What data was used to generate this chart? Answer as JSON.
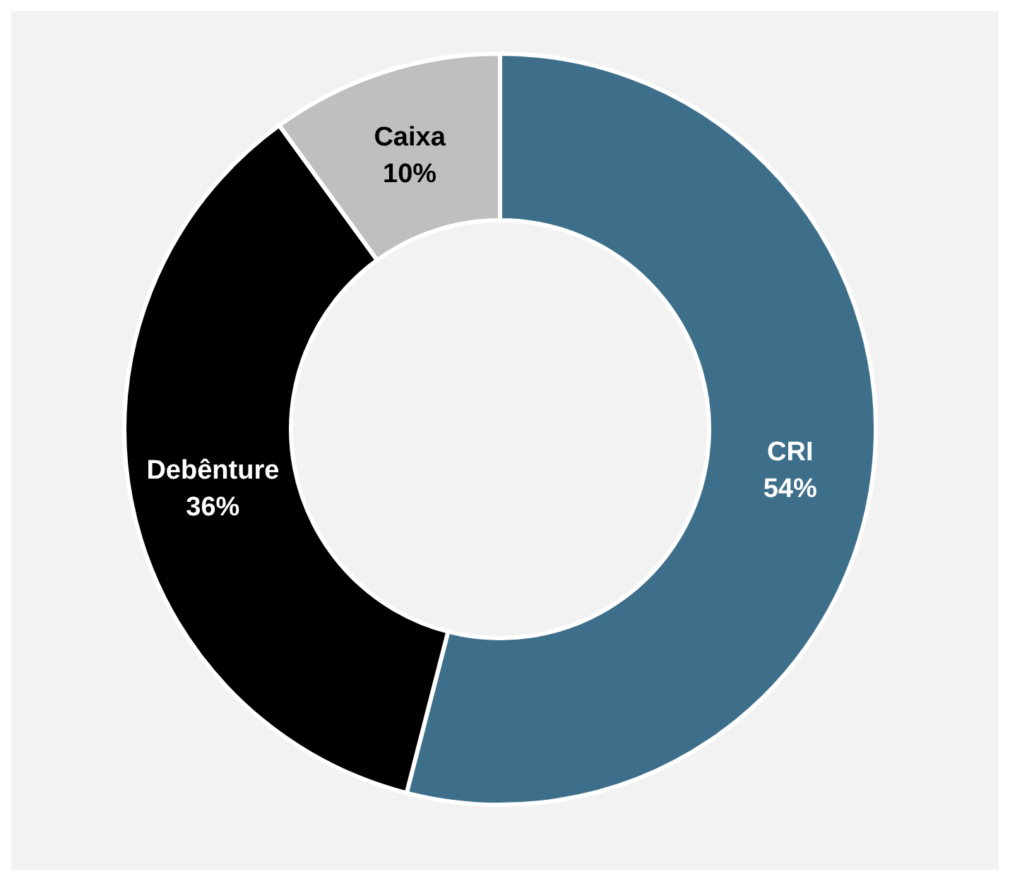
{
  "chart_data": {
    "type": "donut",
    "categories": [
      "CRI",
      "Debênture",
      "Caixa"
    ],
    "values": [
      54,
      36,
      10
    ],
    "value_labels": [
      "54%",
      "36%",
      "10%"
    ],
    "colors": [
      "#3e6f8a",
      "#000000",
      "#bfbfbf"
    ]
  }
}
